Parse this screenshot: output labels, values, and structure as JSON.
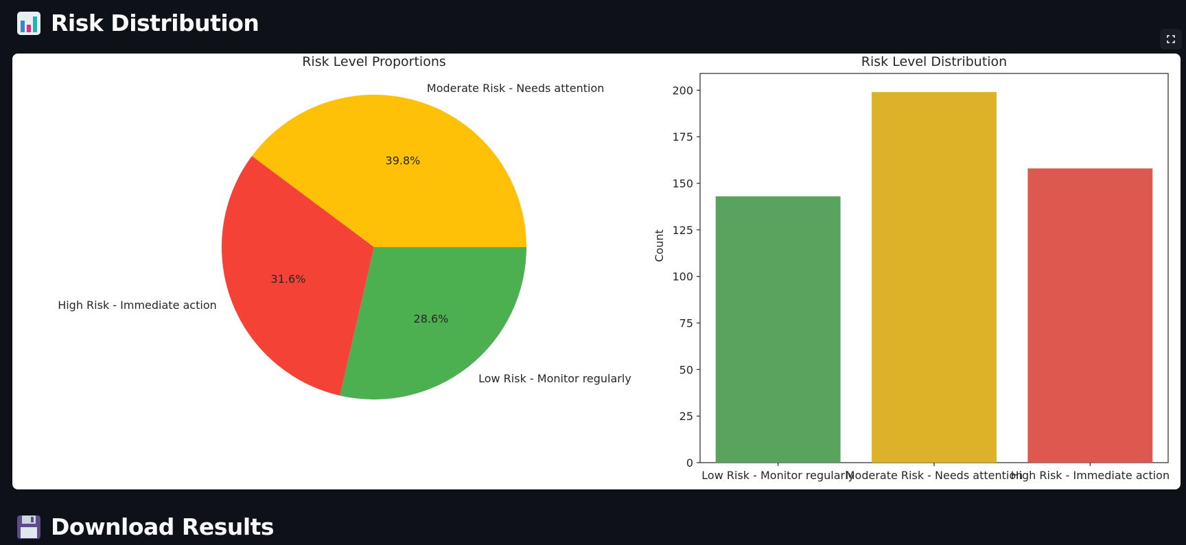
{
  "header": {
    "title": "Risk Distribution",
    "icon": "bar-chart-icon"
  },
  "download": {
    "title": "Download Results",
    "icon": "floppy-disk-icon"
  },
  "fullscreen": {
    "icon": "fullscreen-icon"
  },
  "chart_data": [
    {
      "type": "pie",
      "title": "Risk Level Proportions",
      "labels": [
        "Low Risk - Monitor regularly",
        "High Risk - Immediate action",
        "Moderate Risk - Needs attention"
      ],
      "values": [
        28.6,
        31.6,
        39.8
      ],
      "value_labels": [
        "28.6%",
        "31.6%",
        "39.8%"
      ],
      "colors": [
        "#4caf50",
        "#f44336",
        "#ffc107"
      ],
      "start_angle_deg": 0,
      "direction": "clockwise"
    },
    {
      "type": "bar",
      "title": "Risk Level Distribution",
      "categories": [
        "Low Risk - Monitor regularly",
        "Moderate Risk - Needs attention",
        "High Risk - Immediate action"
      ],
      "values": [
        143,
        199,
        158
      ],
      "colors": [
        "#5aa35e",
        "#ddb229",
        "#dd5950"
      ],
      "xlabel": "",
      "ylabel": "Count",
      "ylim": [
        0,
        209
      ],
      "yticks": [
        0,
        25,
        50,
        75,
        100,
        125,
        150,
        175,
        200
      ],
      "grid": false
    }
  ]
}
